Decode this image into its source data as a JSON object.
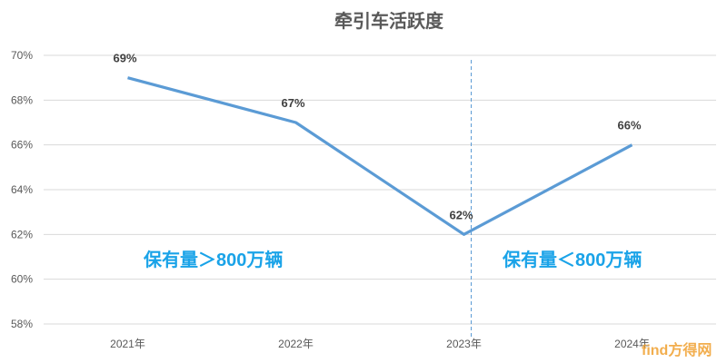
{
  "chart_data": {
    "type": "line",
    "title": "牵引车活跃度",
    "categories": [
      "2021年",
      "2022年",
      "2023年",
      "2024年"
    ],
    "series": [
      {
        "values": [
          69,
          67,
          62,
          66
        ]
      }
    ],
    "data_labels": [
      "69%",
      "67%",
      "62%",
      "66%"
    ],
    "yticks": [
      58,
      60,
      62,
      64,
      66,
      68,
      70
    ],
    "ytick_labels": [
      "58%",
      "60%",
      "62%",
      "64%",
      "66%",
      "68%",
      "70%"
    ],
    "ylim": [
      58,
      70
    ],
    "grid": true,
    "line_color": "#5b9bd5",
    "divider_after_category": "2023年",
    "annotations": [
      {
        "text": "保有量＞800万辆",
        "side": "left"
      },
      {
        "text": "保有量＜800万辆",
        "side": "right"
      }
    ]
  },
  "watermark": "find方得网"
}
